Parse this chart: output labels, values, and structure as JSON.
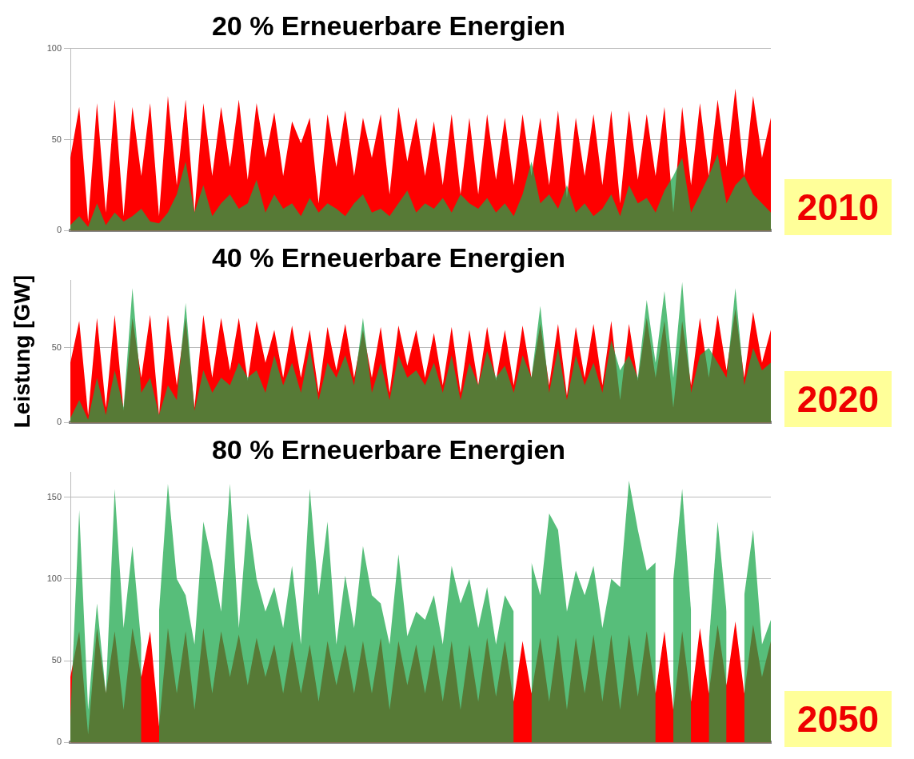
{
  "chart_data": [
    {
      "type": "area",
      "title": "20 % Erneuerbare Energien",
      "categories": [
        null,
        null,
        null,
        null,
        null,
        null,
        null,
        null,
        null,
        null,
        null,
        null,
        null,
        null,
        null,
        null,
        null,
        null,
        null,
        null,
        null,
        null,
        null,
        null,
        null,
        null,
        null,
        null,
        null,
        null,
        null,
        null,
        null,
        null,
        null,
        null,
        null,
        null,
        null,
        null,
        null,
        null,
        null,
        null,
        null,
        null,
        null,
        null,
        null,
        null,
        null,
        null,
        null,
        null,
        null,
        null,
        null,
        null,
        null,
        null,
        null,
        null,
        null,
        null,
        null,
        null,
        null,
        null,
        null,
        null,
        null,
        null,
        null,
        null,
        null,
        null,
        null,
        null,
        null,
        null
      ],
      "series": [
        {
          "color": "#ff0000",
          "values": [
            40,
            68,
            5,
            70,
            10,
            72,
            8,
            68,
            30,
            70,
            8,
            74,
            25,
            72,
            10,
            70,
            30,
            68,
            35,
            72,
            28,
            70,
            40,
            65,
            30,
            60,
            48,
            62,
            15,
            64,
            35,
            66,
            30,
            62,
            40,
            64,
            20,
            68,
            38,
            62,
            30,
            60,
            25,
            64,
            20,
            62,
            20,
            64,
            28,
            62,
            25,
            64,
            30,
            62,
            25,
            66,
            18,
            62,
            30,
            64,
            25,
            66,
            15,
            66,
            28,
            64,
            30,
            68,
            10,
            68,
            25,
            70,
            30,
            72,
            35,
            78,
            30,
            74,
            40,
            62
          ]
        },
        {
          "color": "#1aa64a",
          "values": [
            3,
            8,
            2,
            15,
            3,
            10,
            5,
            8,
            12,
            5,
            4,
            10,
            20,
            38,
            10,
            25,
            8,
            15,
            20,
            12,
            15,
            28,
            10,
            20,
            12,
            15,
            8,
            18,
            10,
            15,
            12,
            8,
            15,
            20,
            10,
            12,
            8,
            15,
            22,
            10,
            15,
            12,
            18,
            10,
            20,
            15,
            12,
            18,
            10,
            15,
            8,
            20,
            38,
            15,
            20,
            12,
            25,
            10,
            15,
            8,
            12,
            20,
            8,
            25,
            15,
            18,
            10,
            22,
            30,
            40,
            10,
            20,
            30,
            42,
            15,
            25,
            30,
            20,
            15,
            10
          ]
        }
      ],
      "ylim": [
        0,
        100
      ],
      "yticks": [
        0,
        50,
        100
      ],
      "grid": "y",
      "tick_labels": "y",
      "annotations": [
        "2010"
      ]
    },
    {
      "type": "area",
      "title": "40 % Erneuerbare Energien",
      "ylabel": "Leistung [GW]",
      "categories": [
        null,
        null,
        null,
        null,
        null,
        null,
        null,
        null,
        null,
        null,
        null,
        null,
        null,
        null,
        null,
        null,
        null,
        null,
        null,
        null,
        null,
        null,
        null,
        null,
        null,
        null,
        null,
        null,
        null,
        null,
        null,
        null,
        null,
        null,
        null,
        null,
        null,
        null,
        null,
        null,
        null,
        null,
        null,
        null,
        null,
        null,
        null,
        null,
        null,
        null,
        null,
        null,
        null,
        null,
        null,
        null,
        null,
        null,
        null,
        null,
        null,
        null,
        null,
        null,
        null,
        null,
        null,
        null,
        null,
        null,
        null,
        null,
        null,
        null,
        null,
        null,
        null,
        null,
        null,
        null
      ],
      "series": [
        {
          "color": "#ff0000",
          "values": [
            40,
            68,
            5,
            70,
            10,
            72,
            8,
            70,
            30,
            72,
            5,
            72,
            25,
            70,
            10,
            72,
            30,
            70,
            35,
            70,
            28,
            68,
            40,
            62,
            30,
            65,
            30,
            62,
            20,
            64,
            35,
            66,
            30,
            62,
            30,
            64,
            20,
            65,
            38,
            62,
            30,
            60,
            25,
            64,
            20,
            62,
            25,
            64,
            28,
            62,
            25,
            65,
            30,
            66,
            25,
            66,
            18,
            64,
            30,
            66,
            25,
            68,
            15,
            66,
            28,
            70,
            30,
            68,
            10,
            68,
            25,
            70,
            30,
            72,
            35,
            76,
            30,
            74,
            40,
            62
          ]
        },
        {
          "color": "#1aa64a",
          "values": [
            3,
            15,
            2,
            30,
            5,
            35,
            10,
            90,
            20,
            30,
            5,
            25,
            15,
            80,
            8,
            35,
            20,
            30,
            25,
            40,
            30,
            35,
            20,
            45,
            25,
            40,
            20,
            50,
            15,
            40,
            30,
            45,
            25,
            70,
            20,
            40,
            15,
            45,
            30,
            35,
            25,
            40,
            20,
            45,
            15,
            40,
            25,
            48,
            30,
            38,
            20,
            45,
            30,
            78,
            20,
            50,
            15,
            45,
            25,
            40,
            20,
            55,
            35,
            45,
            30,
            82,
            40,
            88,
            30,
            94,
            20,
            45,
            50,
            40,
            30,
            90,
            25,
            50,
            35,
            40
          ]
        }
      ],
      "ylim": [
        0,
        95
      ],
      "yticks": [
        0,
        50
      ],
      "grid": "y",
      "tick_labels": "y",
      "annotations": [
        "2020"
      ]
    },
    {
      "type": "area",
      "title": "80 % Erneuerbare Energien",
      "categories": [
        null,
        null,
        null,
        null,
        null,
        null,
        null,
        null,
        null,
        null,
        null,
        null,
        null,
        null,
        null,
        null,
        null,
        null,
        null,
        null,
        null,
        null,
        null,
        null,
        null,
        null,
        null,
        null,
        null,
        null,
        null,
        null,
        null,
        null,
        null,
        null,
        null,
        null,
        null,
        null,
        null,
        null,
        null,
        null,
        null,
        null,
        null,
        null,
        null,
        null,
        null,
        null,
        null,
        null,
        null,
        null,
        null,
        null,
        null,
        null,
        null,
        null,
        null,
        null,
        null,
        null,
        null,
        null,
        null,
        null,
        null,
        null,
        null,
        null,
        null,
        null,
        null,
        null,
        null,
        null
      ],
      "series": [
        {
          "color": "#ff0000",
          "values": [
            40,
            68,
            5,
            70,
            30,
            68,
            20,
            70,
            40,
            68,
            10,
            70,
            30,
            68,
            20,
            70,
            30,
            68,
            40,
            66,
            35,
            64,
            40,
            60,
            30,
            62,
            30,
            60,
            25,
            62,
            35,
            60,
            30,
            62,
            30,
            64,
            20,
            62,
            35,
            60,
            30,
            60,
            25,
            62,
            20,
            60,
            25,
            64,
            28,
            62,
            25,
            62,
            30,
            64,
            25,
            66,
            20,
            64,
            30,
            66,
            25,
            66,
            20,
            66,
            28,
            68,
            30,
            68,
            20,
            68,
            25,
            70,
            30,
            72,
            35,
            74,
            30,
            72,
            40,
            62
          ]
        },
        {
          "color": "#1aa64a",
          "values": [
            15,
            142,
            20,
            85,
            30,
            155,
            70,
            120,
            60,
            null,
            80,
            158,
            100,
            90,
            60,
            135,
            110,
            80,
            158,
            70,
            140,
            100,
            80,
            95,
            70,
            108,
            60,
            155,
            90,
            135,
            60,
            102,
            70,
            120,
            90,
            85,
            60,
            115,
            65,
            80,
            75,
            90,
            60,
            108,
            85,
            100,
            70,
            95,
            60,
            90,
            80,
            null,
            110,
            90,
            140,
            130,
            80,
            105,
            90,
            108,
            70,
            100,
            95,
            160,
            130,
            105,
            110,
            null,
            100,
            155,
            80,
            null,
            60,
            135,
            80,
            null,
            90,
            130,
            60,
            75
          ]
        }
      ],
      "ylim": [
        0,
        165
      ],
      "yticks": [
        0,
        50,
        100,
        150
      ],
      "grid": "y",
      "tick_labels": "y",
      "annotations": [
        "2050"
      ]
    }
  ]
}
